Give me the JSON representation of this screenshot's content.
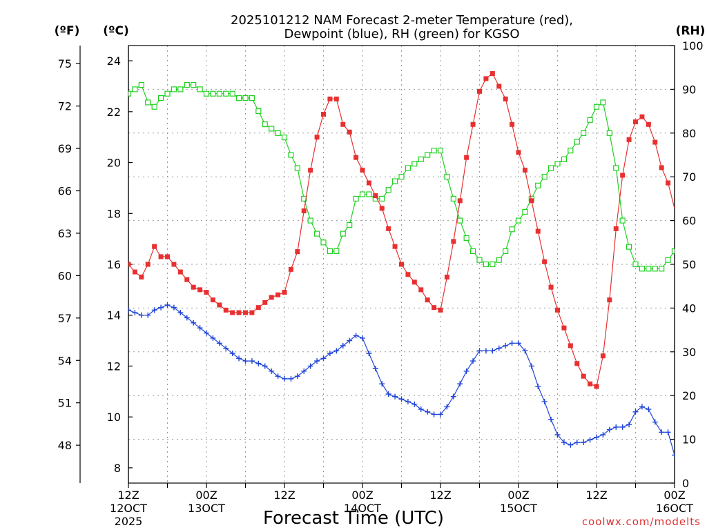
{
  "chart_data": {
    "type": "line",
    "title_line1": "2025101212 NAM Forecast 2-meter Temperature (red),",
    "title_line2": "Dewpoint (blue), RH (green) for KGSO",
    "xlabel": "Forecast Time (UTC)",
    "credit": "coolwx.com/modelts",
    "units": {
      "fahrenheit": "(ºF)",
      "celsius": "(ºC)",
      "rh": "(RH)"
    },
    "x_ticks": [
      {
        "h": 0,
        "l1": "12Z",
        "l2": "12OCT",
        "l3": "2025"
      },
      {
        "h": 12,
        "l1": "00Z",
        "l2": "13OCT",
        "l3": ""
      },
      {
        "h": 24,
        "l1": "12Z",
        "l2": "",
        "l3": ""
      },
      {
        "h": 36,
        "l1": "00Z",
        "l2": "14OCT",
        "l3": ""
      },
      {
        "h": 48,
        "l1": "12Z",
        "l2": "",
        "l3": ""
      },
      {
        "h": 60,
        "l1": "00Z",
        "l2": "15OCT",
        "l3": ""
      },
      {
        "h": 72,
        "l1": "12Z",
        "l2": "",
        "l3": ""
      },
      {
        "h": 84,
        "l1": "00Z",
        "l2": "16OCT",
        "l3": ""
      }
    ],
    "xlim": [
      0,
      84
    ],
    "ylim_c": [
      7.4,
      24.6
    ],
    "ylim_rh": [
      0,
      100
    ],
    "celsius_ticks": [
      8,
      10,
      12,
      14,
      16,
      18,
      20,
      22,
      24
    ],
    "fahrenheit_ticks": [
      48,
      51,
      54,
      57,
      60,
      63,
      66,
      69,
      72,
      75
    ],
    "rh_ticks": [
      0,
      10,
      20,
      30,
      40,
      50,
      60,
      70,
      80,
      90,
      100
    ],
    "x_hours": [
      0,
      1,
      2,
      3,
      4,
      5,
      6,
      7,
      8,
      9,
      10,
      11,
      12,
      13,
      14,
      15,
      16,
      17,
      18,
      19,
      20,
      21,
      22,
      23,
      24,
      25,
      26,
      27,
      28,
      29,
      30,
      31,
      32,
      33,
      34,
      35,
      36,
      37,
      38,
      39,
      40,
      41,
      42,
      43,
      44,
      45,
      46,
      47,
      48,
      49,
      50,
      51,
      52,
      53,
      54,
      55,
      56,
      57,
      58,
      59,
      60,
      61,
      62,
      63,
      64,
      65,
      66,
      67,
      68,
      69,
      70,
      71,
      72,
      73,
      74,
      75,
      76,
      77,
      78,
      79,
      80,
      81,
      82,
      83,
      84
    ],
    "series": [
      {
        "name": "Temperature",
        "units": "C",
        "color": "#e83030",
        "marker": "filled-square",
        "values": [
          16.0,
          15.7,
          15.5,
          16.0,
          16.7,
          16.3,
          16.3,
          16.0,
          15.7,
          15.4,
          15.1,
          15.0,
          14.9,
          14.6,
          14.4,
          14.2,
          14.1,
          14.1,
          14.1,
          14.1,
          14.3,
          14.5,
          14.7,
          14.8,
          14.9,
          15.8,
          16.5,
          18.1,
          19.7,
          21.0,
          21.9,
          22.5,
          22.5,
          21.5,
          21.2,
          20.2,
          19.7,
          19.2,
          18.7,
          18.2,
          17.4,
          16.7,
          16.0,
          15.6,
          15.3,
          15.0,
          14.6,
          14.3,
          14.2,
          15.5,
          16.9,
          18.5,
          20.2,
          21.5,
          22.8,
          23.3,
          23.5,
          23.0,
          22.5,
          21.5,
          20.4,
          19.7,
          18.5,
          17.3,
          16.1,
          15.1,
          14.2,
          13.5,
          12.8,
          12.1,
          11.6,
          11.3,
          11.2,
          12.4,
          14.6,
          17.4,
          19.5,
          20.9,
          21.6,
          21.8,
          21.5,
          20.8,
          19.8,
          19.2,
          18.2
        ],
        "visible_points": 84
      },
      {
        "name": "Dewpoint",
        "units": "C",
        "color": "#2045d8",
        "marker": "plus",
        "values": [
          14.2,
          14.1,
          14.0,
          14.0,
          14.2,
          14.3,
          14.4,
          14.3,
          14.1,
          13.9,
          13.7,
          13.5,
          13.3,
          13.1,
          12.9,
          12.7,
          12.5,
          12.3,
          12.2,
          12.2,
          12.1,
          12.0,
          11.8,
          11.6,
          11.5,
          11.5,
          11.6,
          11.8,
          12.0,
          12.2,
          12.3,
          12.5,
          12.6,
          12.8,
          13.0,
          13.2,
          13.1,
          12.5,
          11.9,
          11.3,
          10.9,
          10.8,
          10.7,
          10.6,
          10.5,
          10.3,
          10.2,
          10.1,
          10.1,
          10.4,
          10.8,
          11.3,
          11.8,
          12.2,
          12.6,
          12.6,
          12.6,
          12.7,
          12.8,
          12.9,
          12.9,
          12.6,
          12.0,
          11.2,
          10.6,
          9.9,
          9.3,
          9.0,
          8.9,
          9.0,
          9.0,
          9.1,
          9.2,
          9.3,
          9.5,
          9.6,
          9.6,
          9.7,
          10.2,
          10.4,
          10.3,
          9.8,
          9.4,
          9.4,
          8.5
        ]
      },
      {
        "name": "Relative Humidity",
        "units": "%",
        "color": "#20d020",
        "marker": "open-square",
        "values": [
          89,
          90,
          91,
          87,
          86,
          88,
          89,
          90,
          90,
          91,
          91,
          90,
          89,
          89,
          89,
          89,
          89,
          88,
          88,
          88,
          85,
          82,
          81,
          80,
          79,
          75,
          72,
          65,
          60,
          57,
          55,
          53,
          53,
          57,
          59,
          65,
          66,
          66,
          65,
          65,
          67,
          69,
          70,
          72,
          73,
          74,
          75,
          76,
          76,
          70,
          65,
          60,
          56,
          53,
          51,
          50,
          50,
          51,
          53,
          58,
          60,
          62,
          65,
          68,
          70,
          72,
          73,
          74,
          76,
          78,
          80,
          83,
          86,
          87,
          80,
          72,
          60,
          54,
          50,
          49,
          49,
          49,
          49,
          51,
          53
        ]
      }
    ]
  }
}
